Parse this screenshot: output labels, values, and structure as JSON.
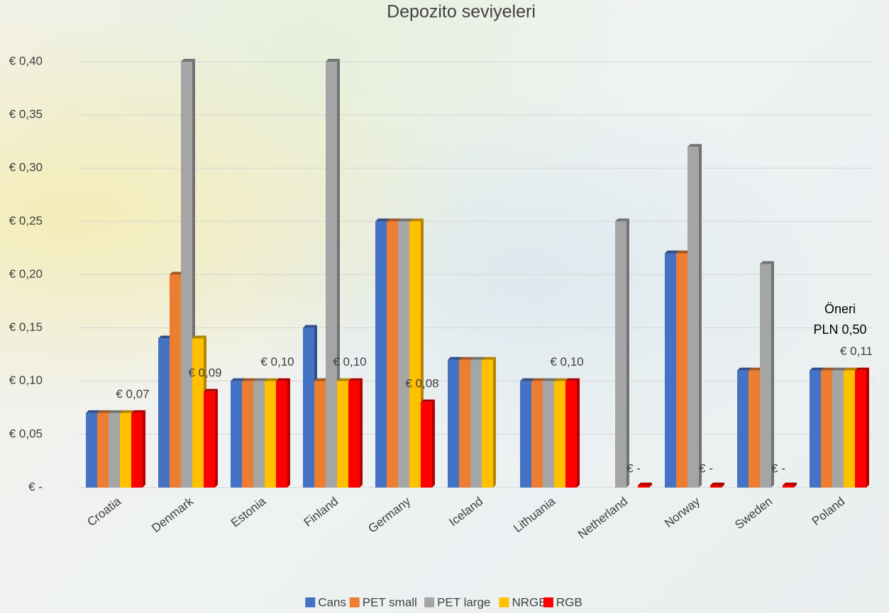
{
  "chart_data": {
    "type": "bar",
    "title": "Depozito seviyeleri",
    "categories": [
      "Croatia",
      "Denmark",
      "Estonia",
      "Finland",
      "Germany",
      "Iceland",
      "Lithuania",
      "Netherland",
      "Norway",
      "Sweden",
      "Poland"
    ],
    "series": [
      {
        "name": "Cans",
        "color": "#4472c4",
        "values": [
          0.07,
          0.14,
          0.1,
          0.15,
          0.25,
          0.12,
          0.1,
          null,
          0.22,
          0.11,
          0.11
        ]
      },
      {
        "name": "PET small",
        "color": "#ed7d31",
        "values": [
          0.07,
          0.2,
          0.1,
          0.1,
          0.25,
          0.12,
          0.1,
          null,
          0.22,
          0.11,
          0.11
        ]
      },
      {
        "name": "PET large",
        "color": "#a5a5a5",
        "values": [
          0.07,
          0.4,
          0.1,
          0.4,
          0.25,
          0.12,
          0.1,
          0.25,
          0.32,
          0.21,
          0.11
        ]
      },
      {
        "name": "NRGB",
        "color": "#ffc000",
        "values": [
          0.07,
          0.14,
          0.1,
          0.1,
          0.25,
          0.12,
          0.1,
          null,
          null,
          null,
          0.11
        ]
      },
      {
        "name": "RGB",
        "color": "#ff0000",
        "values": [
          0.07,
          0.09,
          0.1,
          0.1,
          0.08,
          null,
          0.1,
          0,
          0,
          0,
          0.11
        ],
        "value_labels": [
          "€ 0,07",
          "€ 0,09",
          "€ 0,10",
          "€ 0,10",
          "€ 0,08",
          null,
          "€ 0,10",
          "€ -",
          "€ -",
          "€ -",
          "€ 0,11"
        ]
      }
    ],
    "ylim": [
      0,
      0.4
    ],
    "yticks": [
      {
        "value": 0,
        "label": "€ -"
      },
      {
        "value": 0.05,
        "label": "€ 0,05"
      },
      {
        "value": 0.1,
        "label": "€ 0,10"
      },
      {
        "value": 0.15,
        "label": "€ 0,15"
      },
      {
        "value": 0.2,
        "label": "€ 0,20"
      },
      {
        "value": 0.25,
        "label": "€ 0,25"
      },
      {
        "value": 0.3,
        "label": "€ 0,30"
      },
      {
        "value": 0.35,
        "label": "€ 0,35"
      },
      {
        "value": 0.4,
        "label": "€ 0,40"
      }
    ],
    "grid": true,
    "legend": "bottom",
    "annotations": [
      {
        "text": "Öneri"
      },
      {
        "text": "PLN 0,50"
      }
    ]
  }
}
